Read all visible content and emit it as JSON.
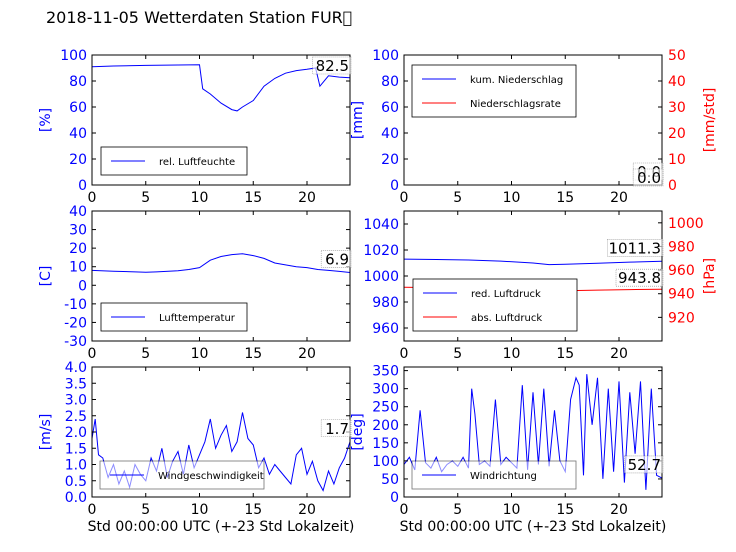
{
  "figure": {
    "title": "2018-11-05 Wetterdaten Station FUR\u0000",
    "colors": {
      "left_axis": "#0000ff",
      "right_axis": "#ff0000",
      "line_blue": "#0000ff",
      "line_red": "#ff0000",
      "frame": "#000000"
    }
  },
  "chart_data": [
    {
      "id": "humidity",
      "type": "line",
      "ylabel": "[%]",
      "xlim": [
        0,
        24
      ],
      "ylim": [
        0,
        100
      ],
      "xticks": [
        0,
        5,
        10,
        15,
        20
      ],
      "yticks": [
        0,
        20,
        40,
        60,
        80,
        100
      ],
      "legend": {
        "placement": "lower-left",
        "entries": [
          "rel. Luftfeuchte"
        ]
      },
      "last_value_label": "82.5",
      "series": [
        {
          "name": "rel. Luftfeuchte",
          "color": "#0000ff",
          "x": [
            0,
            2,
            5,
            8,
            10,
            10.3,
            11,
            12,
            13,
            13.5,
            14,
            15,
            16,
            17,
            18,
            19,
            20,
            20.8,
            21.2,
            22,
            23,
            24
          ],
          "y": [
            91,
            91.5,
            92,
            92.3,
            92.5,
            74,
            70,
            63,
            58,
            57,
            60,
            65,
            76,
            82,
            86,
            88,
            89,
            90,
            76,
            84,
            83,
            82.5
          ]
        }
      ]
    },
    {
      "id": "precipitation",
      "type": "line",
      "ylabel": "[mm]",
      "ylabel_right": "[mm/std]",
      "xlim": [
        0,
        24
      ],
      "ylim": [
        0,
        100
      ],
      "ylim_right": [
        0,
        50
      ],
      "xticks": [
        0,
        5,
        10,
        15,
        20
      ],
      "yticks": [
        0,
        20,
        40,
        60,
        80,
        100
      ],
      "yticks_right": [
        0,
        10,
        20,
        30,
        40,
        50
      ],
      "legend": {
        "placement": "upper-left",
        "entries": [
          "kum. Niederschlag",
          "Niederschlagsrate"
        ]
      },
      "last_value_label": "0.0",
      "last_value_label_right": "0.0",
      "series": [
        {
          "name": "kum. Niederschlag",
          "color": "#0000ff",
          "axis": "left",
          "x": [
            0,
            24
          ],
          "y": [
            0,
            0
          ]
        },
        {
          "name": "Niederschlagsrate",
          "color": "#ff0000",
          "axis": "right",
          "x": [
            0,
            24
          ],
          "y": [
            0,
            0
          ]
        }
      ]
    },
    {
      "id": "temperature",
      "type": "line",
      "ylabel": "[C]",
      "xlim": [
        0,
        24
      ],
      "ylim": [
        -30,
        40
      ],
      "xticks": [
        0,
        5,
        10,
        15,
        20
      ],
      "yticks": [
        -30,
        -20,
        -10,
        0,
        10,
        20,
        30,
        40
      ],
      "legend": {
        "placement": "lower-left",
        "entries": [
          "Lufttemperatur"
        ]
      },
      "last_value_label": "6.9",
      "series": [
        {
          "name": "Lufttemperatur",
          "color": "#0000ff",
          "x": [
            0,
            2,
            4,
            5,
            6,
            8,
            9,
            10,
            11,
            12,
            13,
            14,
            15,
            16,
            17,
            18,
            19,
            20,
            21,
            22,
            23,
            24
          ],
          "y": [
            8,
            7.6,
            7.2,
            7,
            7.2,
            7.8,
            8.5,
            9.5,
            13.5,
            15.5,
            16.5,
            17,
            16,
            14.5,
            12,
            11,
            10,
            9.5,
            8.5,
            8,
            7.5,
            6.9
          ]
        }
      ]
    },
    {
      "id": "pressure",
      "type": "line",
      "ylabel": "",
      "ylabel_right": "[hPa]",
      "xlim": [
        0,
        24
      ],
      "ylim": [
        950,
        1050
      ],
      "ylim_right": [
        900,
        1010
      ],
      "xticks": [
        0,
        5,
        10,
        15,
        20
      ],
      "yticks": [
        960,
        980,
        1000,
        1020,
        1040
      ],
      "yticks_right": [
        920,
        940,
        960,
        980,
        1000
      ],
      "legend": {
        "placement": "lower-left",
        "entries": [
          "red. Luftdruck",
          "abs. Luftdruck"
        ]
      },
      "last_value_label": "1011.3",
      "last_value_label_right": "943.8",
      "series": [
        {
          "name": "red. Luftdruck",
          "color": "#0000ff",
          "axis": "left",
          "x": [
            0,
            3,
            6,
            9,
            12,
            13.5,
            15,
            18,
            21,
            24
          ],
          "y": [
            1013,
            1012.7,
            1012.3,
            1011.5,
            1010,
            1008.8,
            1009,
            1009.8,
            1010.7,
            1011.3
          ]
        },
        {
          "name": "abs. Luftdruck",
          "color": "#ff0000",
          "axis": "right",
          "x": [
            0,
            3,
            6,
            9,
            12,
            13.5,
            15,
            18,
            21,
            24
          ],
          "y": [
            945.5,
            945.2,
            944.8,
            944.2,
            943.1,
            942.4,
            942.5,
            943.1,
            943.5,
            943.8
          ]
        }
      ]
    },
    {
      "id": "windspeed",
      "type": "line",
      "xlabel": "Std 00:00:00 UTC (+-23 Std Lokalzeit)",
      "ylabel": "[m/s]",
      "xlim": [
        0,
        24
      ],
      "ylim": [
        0,
        4
      ],
      "xticks": [
        0,
        5,
        10,
        15,
        20
      ],
      "yticks": [
        0.0,
        0.5,
        1.0,
        1.5,
        2.0,
        2.5,
        3.0,
        3.5,
        4.0
      ],
      "legend": {
        "placement": "lower-center",
        "entries": [
          "Windgeschwindigkeit"
        ]
      },
      "last_value_label": "1.7",
      "series": [
        {
          "name": "Windgeschwindigkeit",
          "color": "#0000ff",
          "x": [
            0,
            0.3,
            0.6,
            1,
            1.5,
            2,
            2.5,
            3,
            3.5,
            4,
            4.5,
            5,
            5.5,
            6,
            6.5,
            7,
            7.5,
            8,
            8.5,
            9,
            9.5,
            10,
            10.5,
            11,
            11.5,
            12,
            12.5,
            13,
            13.5,
            14,
            14.5,
            15,
            15.5,
            16,
            16.5,
            17,
            17.5,
            18,
            18.5,
            19,
            19.5,
            20,
            20.5,
            21,
            21.5,
            22,
            22.5,
            23,
            23.5,
            24
          ],
          "y": [
            1.8,
            2.4,
            1.3,
            1.2,
            0.6,
            1.0,
            0.4,
            0.8,
            0.3,
            1.0,
            0.7,
            0.5,
            1.2,
            0.8,
            1.5,
            0.6,
            1.1,
            1.4,
            0.7,
            1.6,
            0.9,
            1.3,
            1.7,
            2.4,
            1.5,
            1.9,
            2.2,
            1.4,
            1.7,
            2.6,
            1.8,
            1.6,
            0.9,
            1.2,
            0.7,
            1.0,
            0.8,
            0.6,
            0.4,
            1.3,
            1.5,
            0.7,
            1.1,
            0.5,
            0.2,
            0.8,
            0.4,
            0.9,
            1.2,
            1.7
          ]
        }
      ]
    },
    {
      "id": "winddirection",
      "type": "line",
      "xlabel": "Std 00:00:00 UTC (+-23 Std Lokalzeit)",
      "ylabel": "[deg]",
      "xlim": [
        0,
        24
      ],
      "ylim": [
        0,
        360
      ],
      "xticks": [
        0,
        5,
        10,
        15,
        20
      ],
      "yticks": [
        0,
        50,
        100,
        150,
        200,
        250,
        300,
        350
      ],
      "legend": {
        "placement": "lower-center",
        "entries": [
          "Windrichtung"
        ]
      },
      "last_value_label": "52.7",
      "series": [
        {
          "name": "Windrichtung",
          "color": "#0000ff",
          "x": [
            0,
            0.5,
            1,
            1.5,
            2,
            2.5,
            3,
            3.5,
            4,
            4.5,
            5,
            5.5,
            6,
            6.3,
            6.6,
            7,
            7.5,
            8,
            8.5,
            9,
            9.5,
            10,
            10.5,
            11,
            11.5,
            12,
            12.5,
            13,
            13.5,
            14,
            14.5,
            15,
            15.5,
            16,
            16.3,
            16.7,
            17,
            17.5,
            18,
            18.5,
            19,
            19.5,
            20,
            20.5,
            21,
            21.5,
            22,
            22.5,
            23,
            23.5,
            24
          ],
          "y": [
            90,
            110,
            75,
            240,
            95,
            80,
            110,
            70,
            90,
            100,
            85,
            110,
            80,
            300,
            230,
            90,
            100,
            85,
            270,
            90,
            110,
            95,
            80,
            310,
            75,
            290,
            90,
            300,
            85,
            240,
            100,
            70,
            270,
            330,
            310,
            60,
            340,
            200,
            330,
            50,
            300,
            70,
            320,
            40,
            290,
            120,
            320,
            20,
            300,
            60,
            52.7
          ]
        }
      ]
    }
  ]
}
